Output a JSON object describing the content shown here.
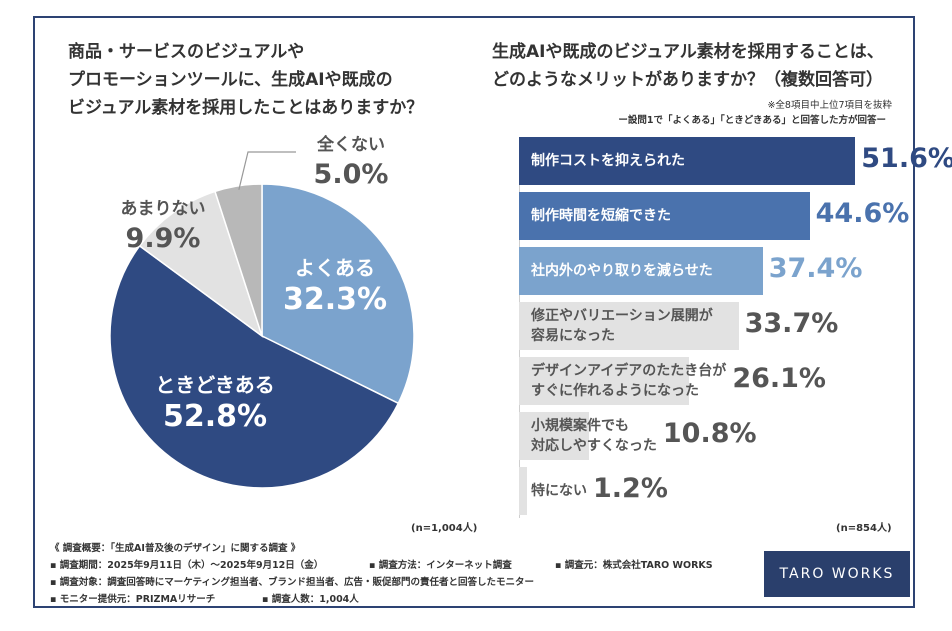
{
  "left_question": [
    "商品・サービスのビジュアルや",
    "プロモーションツールに、生成AIや既成の",
    "ビジュアル素材を採用したことはありますか？"
  ],
  "right_question": [
    "生成AIや既成のビジュアル素材を採用することは、",
    "どのようなメリットがありますか？（複数回答可）"
  ],
  "right_note1": "※全8項目中上位7項目を抜粋",
  "right_note2": "ー設問1で「よくある」「ときどきある」と回答した方が回答ー",
  "left_n": "(n=1,004人)",
  "right_n": "(n=854人)",
  "colors": {
    "navy": "#2f4a82",
    "blue": "#4a72ad",
    "light_blue": "#7ba3cd",
    "gray_light": "#e2e2e2",
    "gray_mid": "#b8b8b8",
    "text_gray": "#555555",
    "bg": "#ffffff"
  },
  "chart_data": [
    {
      "type": "pie",
      "slices": [
        {
          "label": "よくある",
          "value": 32.3,
          "display": "32.3%",
          "color": "#7ba3cd"
        },
        {
          "label": "ときどきある",
          "value": 52.8,
          "display": "52.8%",
          "color": "#2f4a82"
        },
        {
          "label": "あまりない",
          "value": 9.9,
          "display": "9.9%",
          "color": "#e2e2e2"
        },
        {
          "label": "全くない",
          "value": 5.0,
          "display": "5.0%",
          "color": "#b8b8b8"
        }
      ]
    },
    {
      "type": "bar",
      "orientation": "horizontal",
      "xlim": [
        0,
        60
      ],
      "items": [
        {
          "label": [
            "制作コストを抑えられた"
          ],
          "value": 51.6,
          "display": "51.6%",
          "bar_color": "#2f4a82",
          "text_color": "#ffffff",
          "value_color": "#2f4a82"
        },
        {
          "label": [
            "制作時間を短縮できた"
          ],
          "value": 44.6,
          "display": "44.6%",
          "bar_color": "#4a72ad",
          "text_color": "#ffffff",
          "value_color": "#4a72ad"
        },
        {
          "label": [
            "社内外のやり取りを減らせた"
          ],
          "value": 37.4,
          "display": "37.4%",
          "bar_color": "#7ba3cd",
          "text_color": "#ffffff",
          "value_color": "#7ba3cd"
        },
        {
          "label": [
            "修正やバリエーション展開が",
            "容易になった"
          ],
          "value": 33.7,
          "display": "33.7%",
          "bar_color": "#e2e2e2",
          "text_color": "#555555",
          "value_color": "#555555"
        },
        {
          "label": [
            "デザインアイデアのたたき台が",
            "すぐに作れるようになった"
          ],
          "value": 26.1,
          "display": "26.1%",
          "bar_color": "#e2e2e2",
          "text_color": "#555555",
          "value_color": "#555555"
        },
        {
          "label": [
            "小規模案件でも",
            "対応しやすくなった"
          ],
          "value": 10.8,
          "display": "10.8%",
          "bar_color": "#e2e2e2",
          "text_color": "#555555",
          "value_color": "#555555"
        },
        {
          "label": [
            "特にない"
          ],
          "value": 1.2,
          "display": "1.2%",
          "bar_color": "#e2e2e2",
          "text_color": "#555555",
          "value_color": "#555555"
        }
      ]
    }
  ],
  "footer": {
    "line1": "《 調査概要：「生成AI普及後のデザイン」に関する調査 》",
    "line2a": "▪ 調査期間：2025年9月11日（木）～2025年9月12日（金）",
    "line2b": "▪ 調査方法：インターネット調査",
    "line2c": "▪ 調査元：株式会社TARO WORKS",
    "line3": "▪ 調査対象：調査回答時にマーケティング担当者、ブランド担当者、広告・販促部門の責任者と回答したモニター",
    "line4a": "▪ モニター提供元：PRIZMAリサーチ",
    "line4b": "▪ 調査人数：1,004人"
  },
  "brand": "TARO WORKS"
}
